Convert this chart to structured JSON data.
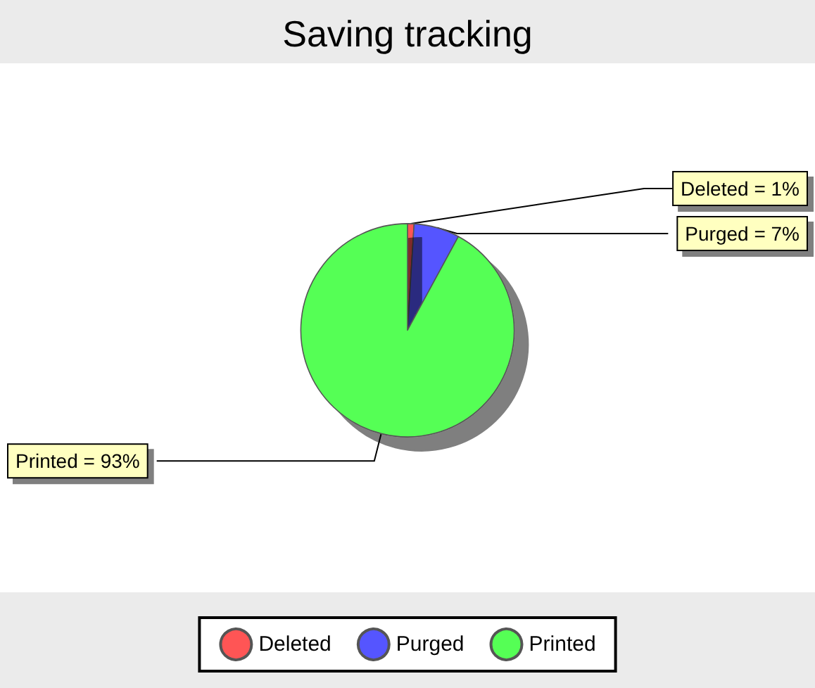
{
  "chart_data": {
    "type": "pie",
    "title": "Saving tracking",
    "categories": [
      "Deleted",
      "Purged",
      "Printed"
    ],
    "values": [
      1,
      7,
      93
    ],
    "colors": [
      "#ff5555",
      "#5555ff",
      "#55ff55"
    ],
    "value_labels": [
      "Deleted = 1%",
      "Purged = 7%",
      "Printed = 93%"
    ],
    "legend": "bottom"
  }
}
